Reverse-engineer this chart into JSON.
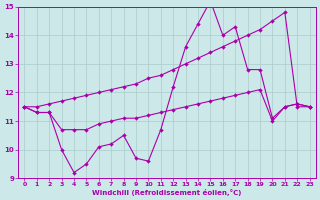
{
  "xlabel": "Windchill (Refroidissement éolien,°C)",
  "xlim": [
    -0.5,
    23.5
  ],
  "ylim": [
    9,
    15
  ],
  "yticks": [
    9,
    10,
    11,
    12,
    13,
    14,
    15
  ],
  "xticks": [
    0,
    1,
    2,
    3,
    4,
    5,
    6,
    7,
    8,
    9,
    10,
    11,
    12,
    13,
    14,
    15,
    16,
    17,
    18,
    19,
    20,
    21,
    22,
    23
  ],
  "bg_color": "#cce8e8",
  "grid_color": "#aacccc",
  "line_color": "#aa00aa",
  "line1_x": [
    0,
    1,
    2,
    3,
    4,
    5,
    6,
    7,
    8,
    9,
    10,
    11,
    12,
    13,
    14,
    15,
    16,
    17,
    18,
    19,
    20,
    21,
    22,
    23
  ],
  "line1_y": [
    11.5,
    11.3,
    11.3,
    10.0,
    9.2,
    9.5,
    10.1,
    10.2,
    10.5,
    9.7,
    9.6,
    10.7,
    12.2,
    13.6,
    14.4,
    15.2,
    14.0,
    14.3,
    12.8,
    12.8,
    11.1,
    11.5,
    11.6,
    11.5
  ],
  "line2_x": [
    0,
    1,
    2,
    3,
    4,
    5,
    6,
    7,
    8,
    9,
    10,
    11,
    12,
    13,
    14,
    15,
    16,
    17,
    18,
    19,
    20,
    21,
    22,
    23
  ],
  "line2_y": [
    11.5,
    11.5,
    11.6,
    11.7,
    11.8,
    11.9,
    12.0,
    12.1,
    12.2,
    12.3,
    12.5,
    12.6,
    12.8,
    13.0,
    13.2,
    13.4,
    13.6,
    13.8,
    14.0,
    14.2,
    14.5,
    14.8,
    11.5,
    11.5
  ],
  "line3_x": [
    0,
    1,
    2,
    3,
    4,
    5,
    6,
    7,
    8,
    9,
    10,
    11,
    12,
    13,
    14,
    15,
    16,
    17,
    18,
    19,
    20,
    21,
    22,
    23
  ],
  "line3_y": [
    11.5,
    11.3,
    11.3,
    10.7,
    10.7,
    10.7,
    10.9,
    11.0,
    11.1,
    11.1,
    11.2,
    11.3,
    11.4,
    11.5,
    11.6,
    11.7,
    11.8,
    11.9,
    12.0,
    12.1,
    11.0,
    11.5,
    11.6,
    11.5
  ]
}
